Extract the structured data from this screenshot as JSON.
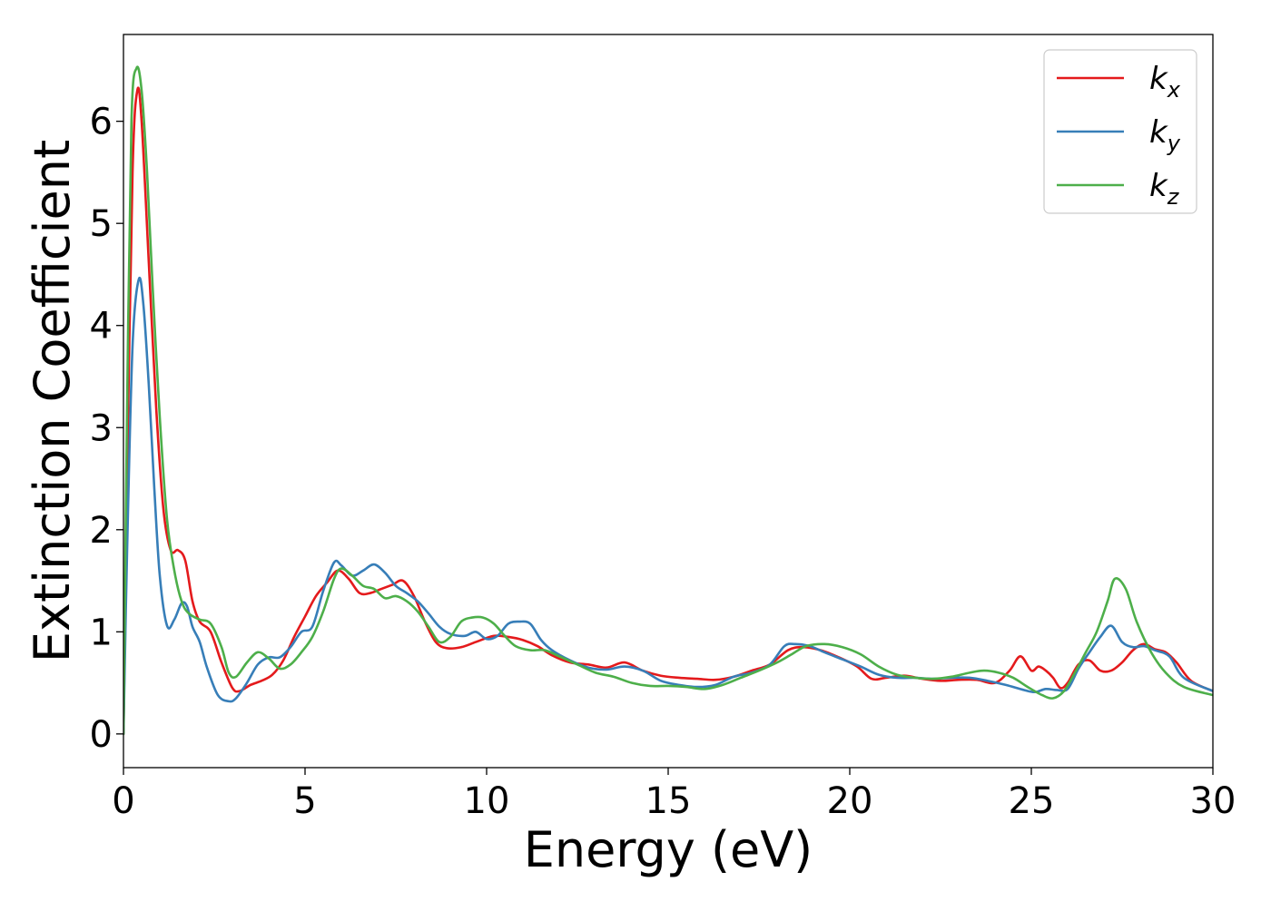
{
  "chart_data": {
    "type": "line",
    "title": "",
    "xlabel": "Energy (eV)",
    "ylabel": "Extinction Coefficient",
    "xlim": [
      0,
      30
    ],
    "ylim": [
      -0.33,
      6.85
    ],
    "xticks": [
      0,
      5,
      10,
      15,
      20,
      25,
      30
    ],
    "yticks": [
      0,
      1,
      2,
      3,
      4,
      5,
      6
    ],
    "grid": false,
    "legend_position": "top-right",
    "series": [
      {
        "name": "k_x",
        "label_main": "k",
        "label_sub": "x",
        "color": "#e41a1c",
        "x": [
          0,
          0.1,
          0.25,
          0.38,
          0.5,
          0.7,
          0.9,
          1.1,
          1.3,
          1.5,
          1.7,
          1.9,
          2.1,
          2.4,
          2.7,
          3.0,
          3.2,
          3.5,
          3.8,
          4.1,
          4.4,
          4.7,
          5.0,
          5.3,
          5.6,
          5.9,
          6.2,
          6.5,
          6.8,
          7.1,
          7.4,
          7.7,
          8.0,
          8.3,
          8.6,
          8.9,
          9.3,
          9.7,
          10.2,
          10.6,
          11.0,
          11.4,
          11.8,
          12.3,
          12.8,
          13.3,
          13.8,
          14.3,
          14.8,
          15.3,
          15.8,
          16.3,
          16.8,
          17.3,
          17.8,
          18.3,
          18.7,
          19.2,
          19.7,
          20.2,
          20.6,
          21.0,
          21.5,
          22.0,
          22.5,
          23.0,
          23.5,
          24.0,
          24.4,
          24.7,
          25.0,
          25.2,
          25.4,
          25.6,
          25.8,
          26.0,
          26.3,
          26.6,
          26.9,
          27.2,
          27.5,
          27.8,
          28.1,
          28.4,
          28.7,
          29.0,
          29.4,
          30.0
        ],
        "y": [
          0,
          2.5,
          5.5,
          6.3,
          6.0,
          4.6,
          3.2,
          2.2,
          1.8,
          1.8,
          1.7,
          1.3,
          1.1,
          1.0,
          0.7,
          0.45,
          0.42,
          0.48,
          0.52,
          0.58,
          0.72,
          0.95,
          1.15,
          1.35,
          1.48,
          1.6,
          1.52,
          1.38,
          1.38,
          1.42,
          1.46,
          1.5,
          1.35,
          1.1,
          0.9,
          0.84,
          0.85,
          0.9,
          0.96,
          0.95,
          0.92,
          0.86,
          0.77,
          0.7,
          0.68,
          0.65,
          0.7,
          0.62,
          0.57,
          0.55,
          0.54,
          0.53,
          0.56,
          0.62,
          0.68,
          0.82,
          0.85,
          0.82,
          0.75,
          0.66,
          0.54,
          0.55,
          0.57,
          0.54,
          0.52,
          0.53,
          0.53,
          0.5,
          0.62,
          0.76,
          0.62,
          0.66,
          0.62,
          0.55,
          0.45,
          0.5,
          0.68,
          0.72,
          0.62,
          0.62,
          0.7,
          0.82,
          0.88,
          0.83,
          0.8,
          0.7,
          0.52,
          0.42
        ]
      },
      {
        "name": "k_y",
        "label_main": "k",
        "label_sub": "y",
        "color": "#377eb8",
        "x": [
          0,
          0.1,
          0.25,
          0.42,
          0.55,
          0.7,
          0.85,
          1.0,
          1.2,
          1.4,
          1.6,
          1.75,
          1.9,
          2.1,
          2.3,
          2.6,
          2.9,
          3.1,
          3.4,
          3.7,
          4.0,
          4.3,
          4.6,
          4.9,
          5.2,
          5.5,
          5.8,
          6.0,
          6.3,
          6.6,
          6.9,
          7.2,
          7.5,
          7.8,
          8.1,
          8.4,
          8.7,
          9.0,
          9.4,
          9.7,
          10.0,
          10.3,
          10.6,
          10.9,
          11.2,
          11.5,
          11.8,
          12.3,
          12.8,
          13.3,
          13.8,
          14.3,
          14.8,
          15.3,
          15.8,
          16.3,
          16.8,
          17.3,
          17.8,
          18.2,
          18.5,
          18.9,
          19.3,
          19.8,
          20.3,
          20.8,
          21.3,
          21.8,
          22.3,
          22.8,
          23.3,
          23.8,
          24.3,
          24.8,
          25.1,
          25.4,
          25.7,
          26.0,
          26.3,
          26.6,
          26.9,
          27.2,
          27.5,
          27.8,
          28.1,
          28.4,
          28.8,
          29.2,
          30.0
        ],
        "y": [
          0,
          1.8,
          3.8,
          4.45,
          4.2,
          3.4,
          2.4,
          1.55,
          1.06,
          1.12,
          1.28,
          1.25,
          1.05,
          0.9,
          0.65,
          0.38,
          0.32,
          0.35,
          0.5,
          0.68,
          0.75,
          0.75,
          0.85,
          1.0,
          1.05,
          1.4,
          1.68,
          1.65,
          1.55,
          1.6,
          1.66,
          1.58,
          1.45,
          1.38,
          1.3,
          1.18,
          1.05,
          0.98,
          0.96,
          1.0,
          0.93,
          0.96,
          1.08,
          1.1,
          1.08,
          0.92,
          0.82,
          0.72,
          0.65,
          0.63,
          0.66,
          0.62,
          0.52,
          0.48,
          0.46,
          0.48,
          0.56,
          0.6,
          0.68,
          0.86,
          0.88,
          0.86,
          0.8,
          0.73,
          0.66,
          0.58,
          0.55,
          0.55,
          0.54,
          0.55,
          0.55,
          0.52,
          0.48,
          0.43,
          0.41,
          0.44,
          0.43,
          0.44,
          0.64,
          0.8,
          0.95,
          1.06,
          0.9,
          0.85,
          0.86,
          0.82,
          0.76,
          0.55,
          0.42
        ]
      },
      {
        "name": "k_z",
        "label_main": "k",
        "label_sub": "z",
        "color": "#4daf4a",
        "x": [
          0,
          0.1,
          0.22,
          0.36,
          0.5,
          0.65,
          0.8,
          1.0,
          1.2,
          1.4,
          1.6,
          1.8,
          2.1,
          2.4,
          2.7,
          2.9,
          3.1,
          3.4,
          3.7,
          4.0,
          4.3,
          4.6,
          4.9,
          5.2,
          5.5,
          5.8,
          6.0,
          6.3,
          6.6,
          6.9,
          7.2,
          7.5,
          7.8,
          8.1,
          8.4,
          8.7,
          9.0,
          9.3,
          9.6,
          9.9,
          10.2,
          10.5,
          10.8,
          11.2,
          11.6,
          12.0,
          12.5,
          13.0,
          13.5,
          14.0,
          14.5,
          15.0,
          15.5,
          16.0,
          16.5,
          17.0,
          17.5,
          18.0,
          18.4,
          18.8,
          19.3,
          19.8,
          20.3,
          20.8,
          21.3,
          21.8,
          22.3,
          22.8,
          23.3,
          23.7,
          24.1,
          24.5,
          24.9,
          25.3,
          25.6,
          25.9,
          26.2,
          26.5,
          26.8,
          27.1,
          27.3,
          27.6,
          27.9,
          28.3,
          28.7,
          29.2,
          30.0
        ],
        "y": [
          0,
          3.2,
          6.0,
          6.52,
          6.3,
          5.5,
          4.4,
          3.1,
          2.1,
          1.6,
          1.3,
          1.18,
          1.12,
          1.08,
          0.85,
          0.6,
          0.56,
          0.7,
          0.8,
          0.74,
          0.64,
          0.68,
          0.8,
          0.95,
          1.2,
          1.52,
          1.62,
          1.55,
          1.45,
          1.42,
          1.33,
          1.35,
          1.3,
          1.2,
          1.05,
          0.9,
          0.95,
          1.1,
          1.14,
          1.14,
          1.08,
          0.96,
          0.86,
          0.82,
          0.82,
          0.76,
          0.68,
          0.6,
          0.56,
          0.5,
          0.47,
          0.47,
          0.46,
          0.44,
          0.48,
          0.55,
          0.62,
          0.7,
          0.78,
          0.86,
          0.88,
          0.85,
          0.78,
          0.66,
          0.58,
          0.55,
          0.54,
          0.56,
          0.6,
          0.62,
          0.6,
          0.55,
          0.46,
          0.38,
          0.35,
          0.42,
          0.6,
          0.8,
          1.0,
          1.3,
          1.52,
          1.42,
          1.1,
          0.8,
          0.6,
          0.46,
          0.38
        ]
      }
    ]
  }
}
